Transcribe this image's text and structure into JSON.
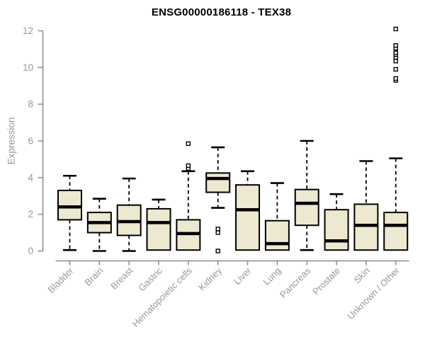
{
  "chart_data": {
    "type": "boxplot",
    "title": "ENSG00000186118 - TEX38",
    "xlabel": "",
    "ylabel": "Expression",
    "ylim": [
      0,
      12
    ],
    "yticks": [
      0,
      2,
      4,
      6,
      8,
      10,
      12
    ],
    "grid": false,
    "legend": false,
    "categories": [
      "Bladder",
      "Brain",
      "Breast",
      "Gastric",
      "Hematopoietic cells",
      "Kidney",
      "Liver",
      "Lung",
      "Pancreas",
      "Prostate",
      "Skin",
      "Unknown / Other"
    ],
    "series": [
      {
        "name": "Bladder",
        "whislo": 0.05,
        "q1": 1.7,
        "med": 2.4,
        "q3": 3.3,
        "whishi": 4.1,
        "outliers": []
      },
      {
        "name": "Brain",
        "whislo": 0.0,
        "q1": 1.0,
        "med": 1.55,
        "q3": 2.1,
        "whishi": 2.85,
        "outliers": []
      },
      {
        "name": "Breast",
        "whislo": 0.0,
        "q1": 0.85,
        "med": 1.6,
        "q3": 2.5,
        "whishi": 3.95,
        "outliers": []
      },
      {
        "name": "Gastric",
        "whislo": 0.05,
        "q1": 0.05,
        "med": 1.55,
        "q3": 2.3,
        "whishi": 2.8,
        "outliers": []
      },
      {
        "name": "Hematopoietic cells",
        "whislo": 0.05,
        "q1": 0.05,
        "med": 0.95,
        "q3": 1.7,
        "whishi": 4.35,
        "outliers": [
          4.5,
          4.65,
          5.85
        ]
      },
      {
        "name": "Kidney",
        "whislo": 2.35,
        "q1": 3.2,
        "med": 3.95,
        "q3": 4.25,
        "whishi": 5.65,
        "outliers": [
          1.2,
          1.0,
          0.0
        ]
      },
      {
        "name": "Liver",
        "whislo": 0.05,
        "q1": 0.05,
        "med": 2.25,
        "q3": 3.6,
        "whishi": 4.35,
        "outliers": []
      },
      {
        "name": "Lung",
        "whislo": 0.05,
        "q1": 0.05,
        "med": 0.4,
        "q3": 1.65,
        "whishi": 3.7,
        "outliers": []
      },
      {
        "name": "Pancreas",
        "whislo": 0.05,
        "q1": 1.4,
        "med": 2.6,
        "q3": 3.35,
        "whishi": 6.0,
        "outliers": []
      },
      {
        "name": "Prostate",
        "whislo": 0.05,
        "q1": 0.05,
        "med": 0.55,
        "q3": 2.25,
        "whishi": 3.1,
        "outliers": []
      },
      {
        "name": "Skin",
        "whislo": 0.05,
        "q1": 0.05,
        "med": 1.4,
        "q3": 2.55,
        "whishi": 4.9,
        "outliers": []
      },
      {
        "name": "Unknown / Other",
        "whislo": 0.05,
        "q1": 0.05,
        "med": 1.4,
        "q3": 2.1,
        "whishi": 5.05,
        "outliers": [
          9.3,
          9.4,
          9.9,
          10.35,
          10.55,
          10.7,
          10.8,
          11.05,
          11.2,
          12.1
        ]
      }
    ],
    "colors": {
      "box_fill": "#EDE8D0",
      "box_border": "#000000",
      "median": "#000000",
      "whisker": "#000000",
      "outlier_stroke": "#000000",
      "outlier_fill": "#FFFFFF",
      "axis": "#8A8A8A",
      "tick_label": "#979797",
      "title": "#000000",
      "background": "#FFFFFF"
    }
  }
}
